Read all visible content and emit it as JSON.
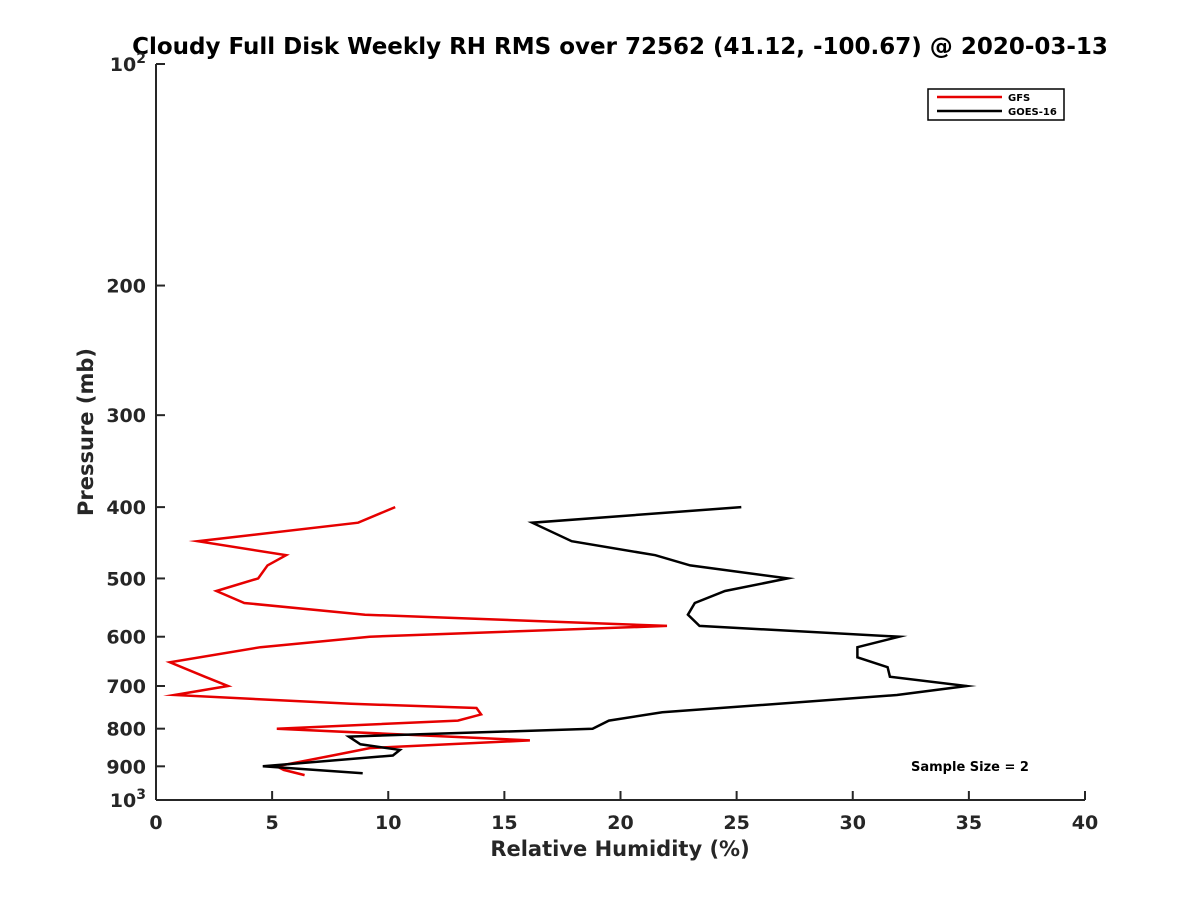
{
  "chart_data": {
    "type": "line",
    "title": "Cloudy Full Disk Weekly RH RMS over 72562 (41.12, -100.67) @ 2020-03-13",
    "xlabel": "Relative Humidity (%)",
    "ylabel": "Pressure (mb)",
    "xlim": [
      0,
      40
    ],
    "ylim": [
      100,
      1000
    ],
    "y_scale": "log",
    "y_reversed": true,
    "grid": false,
    "legend_position": "top-right",
    "x_ticks": [
      "0",
      "5",
      "10",
      "15",
      "20",
      "25",
      "30",
      "35",
      "40"
    ],
    "y_ticks": [
      {
        "value": 100,
        "base": "10",
        "exp": "2"
      },
      {
        "value": 200,
        "label": "200"
      },
      {
        "value": 300,
        "label": "300"
      },
      {
        "value": 400,
        "label": "400"
      },
      {
        "value": 500,
        "label": "500"
      },
      {
        "value": 600,
        "label": "600"
      },
      {
        "value": 700,
        "label": "700"
      },
      {
        "value": 800,
        "label": "800"
      },
      {
        "value": 900,
        "label": "900"
      },
      {
        "value": 1000,
        "base": "10",
        "exp": "3"
      }
    ],
    "series": [
      {
        "name": "GFS",
        "color": "#e60000",
        "points": [
          {
            "x": 10.3,
            "y": 400
          },
          {
            "x": 8.7,
            "y": 420
          },
          {
            "x": 1.8,
            "y": 445
          },
          {
            "x": 5.6,
            "y": 465
          },
          {
            "x": 4.8,
            "y": 480
          },
          {
            "x": 4.4,
            "y": 500
          },
          {
            "x": 2.6,
            "y": 520
          },
          {
            "x": 3.8,
            "y": 540
          },
          {
            "x": 9.0,
            "y": 560
          },
          {
            "x": 22.0,
            "y": 580
          },
          {
            "x": 9.2,
            "y": 600
          },
          {
            "x": 4.5,
            "y": 620
          },
          {
            "x": 0.6,
            "y": 650
          },
          {
            "x": 2.1,
            "y": 680
          },
          {
            "x": 3.1,
            "y": 700
          },
          {
            "x": 0.8,
            "y": 720
          },
          {
            "x": 8.4,
            "y": 740
          },
          {
            "x": 13.8,
            "y": 750
          },
          {
            "x": 14.0,
            "y": 765
          },
          {
            "x": 13.0,
            "y": 780
          },
          {
            "x": 5.2,
            "y": 800
          },
          {
            "x": 16.1,
            "y": 830
          },
          {
            "x": 9.2,
            "y": 850
          },
          {
            "x": 7.6,
            "y": 870
          },
          {
            "x": 5.2,
            "y": 900
          },
          {
            "x": 5.5,
            "y": 910
          },
          {
            "x": 6.4,
            "y": 925
          }
        ]
      },
      {
        "name": "GOES-16",
        "color": "#000000",
        "points": [
          {
            "x": 25.2,
            "y": 400
          },
          {
            "x": 16.2,
            "y": 420
          },
          {
            "x": 17.9,
            "y": 445
          },
          {
            "x": 21.5,
            "y": 465
          },
          {
            "x": 23.0,
            "y": 480
          },
          {
            "x": 27.2,
            "y": 500
          },
          {
            "x": 24.5,
            "y": 520
          },
          {
            "x": 23.2,
            "y": 540
          },
          {
            "x": 22.9,
            "y": 560
          },
          {
            "x": 23.4,
            "y": 580
          },
          {
            "x": 32.0,
            "y": 600
          },
          {
            "x": 30.2,
            "y": 620
          },
          {
            "x": 30.2,
            "y": 640
          },
          {
            "x": 31.5,
            "y": 660
          },
          {
            "x": 31.6,
            "y": 680
          },
          {
            "x": 34.9,
            "y": 700
          },
          {
            "x": 31.9,
            "y": 720
          },
          {
            "x": 21.8,
            "y": 760
          },
          {
            "x": 19.5,
            "y": 780
          },
          {
            "x": 18.8,
            "y": 800
          },
          {
            "x": 8.3,
            "y": 820
          },
          {
            "x": 8.8,
            "y": 840
          },
          {
            "x": 10.5,
            "y": 855
          },
          {
            "x": 10.2,
            "y": 870
          },
          {
            "x": 4.6,
            "y": 900
          },
          {
            "x": 8.9,
            "y": 920
          }
        ]
      }
    ],
    "annotation": "Sample Size = 2"
  }
}
